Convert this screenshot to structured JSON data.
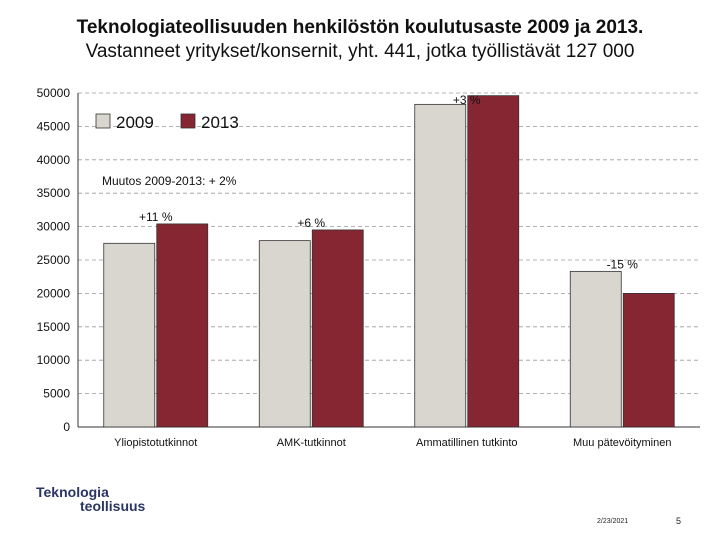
{
  "slide": {
    "title_line1": "Teknologiateollisuuden henkilöstön koulutusaste 2009 ja 2013.",
    "title_line2": "Vastanneet yritykset/konsernit, yht. 441, jotka työllistävät 127 000",
    "logo_line1": "Teknologia",
    "logo_line2": "teollisuus",
    "date": "2/23/2021",
    "page_number": "5"
  },
  "chart_data": {
    "type": "bar",
    "title": "Teknologiateollisuuden henkilöstön koulutusaste 2009 ja 2013",
    "categories": [
      "Yliopistotutkinnot",
      "AMK-tutkinnot",
      "Ammatillinen tutkinto",
      "Muu pätevöityminen"
    ],
    "series": [
      {
        "name": "2009",
        "color": "#d9d6d0",
        "values": [
          27500,
          27900,
          48300,
          23300
        ]
      },
      {
        "name": "2013",
        "color": "#862633",
        "values": [
          30400,
          29500,
          49600,
          20000
        ]
      }
    ],
    "ylim": [
      0,
      50000
    ],
    "yticks": [
      "0",
      "5000",
      "10000",
      "15000",
      "20000",
      "25000",
      "30000",
      "35000",
      "40000",
      "45000",
      "50000"
    ],
    "change_labels": [
      "+11 %",
      "+6 %",
      "+3 %",
      "-15 %"
    ],
    "overall_change": "Muutos 2009-2013: + 2%",
    "legend_position": "top-left",
    "grid": true
  }
}
